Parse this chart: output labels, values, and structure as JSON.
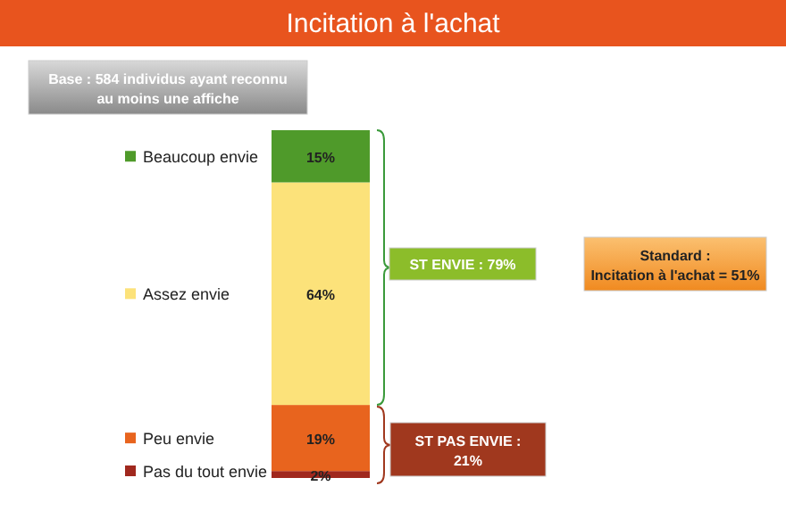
{
  "chart_data": {
    "type": "bar",
    "title": "Incitation à l'achat",
    "categories": [
      null
    ],
    "stacked": true,
    "legend": "left",
    "series": [
      {
        "name": "Pas du tout envie",
        "color": "#a0281e",
        "values": [
          2
        ],
        "value_labels": [
          "2%"
        ]
      },
      {
        "name": "Peu envie",
        "color": "#e8641e",
        "values": [
          19
        ],
        "value_labels": [
          "19%"
        ]
      },
      {
        "name": "Assez envie",
        "color": "#fce27a",
        "values": [
          64
        ],
        "value_labels": [
          "64%"
        ]
      },
      {
        "name": "Beaucoup envie",
        "color": "#4f9a2a",
        "values": [
          15
        ],
        "value_labels": [
          "15%"
        ]
      }
    ],
    "annotations": [
      "Base : 584 individus ayant reconnu au moins une affiche",
      "ST ENVIE : 79%",
      "ST PAS ENVIE : 21%",
      "Standard : Incitation à l'achat = 51%"
    ]
  }
}
